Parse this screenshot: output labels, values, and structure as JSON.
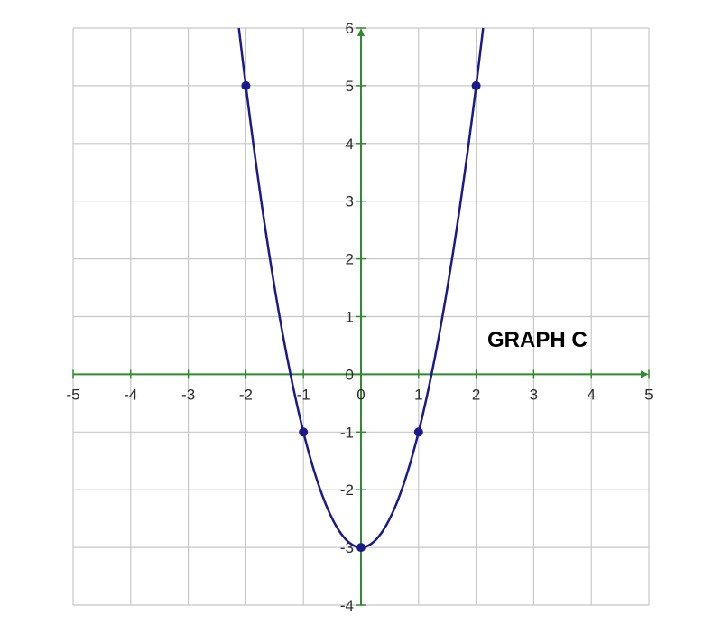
{
  "chart_data": {
    "type": "line",
    "title": "GRAPH C",
    "xlabel": "",
    "ylabel": "",
    "xlim": [
      -5,
      5
    ],
    "ylim": [
      -4,
      6
    ],
    "grid": true,
    "x_ticks": [
      "-5",
      "-4",
      "-3",
      "-2",
      "-1",
      "0",
      "1",
      "2",
      "3",
      "4",
      "5"
    ],
    "y_ticks": [
      "-4",
      "-3",
      "-2",
      "-1",
      "0",
      "1",
      "2",
      "3",
      "4",
      "5",
      "6"
    ],
    "curve": {
      "equation": "y = 2x^2 - 3",
      "a": 2,
      "b": 0,
      "c": -3
    },
    "series": [
      {
        "x": [
          -2,
          -1,
          0,
          1,
          2
        ],
        "y": [
          5,
          -1,
          -3,
          -1,
          5
        ]
      }
    ],
    "colors": {
      "curve": "#1a1a8c",
      "axes": "#2e8b2e",
      "grid": "#c8c8c8",
      "points": "#1a1a8c"
    }
  }
}
